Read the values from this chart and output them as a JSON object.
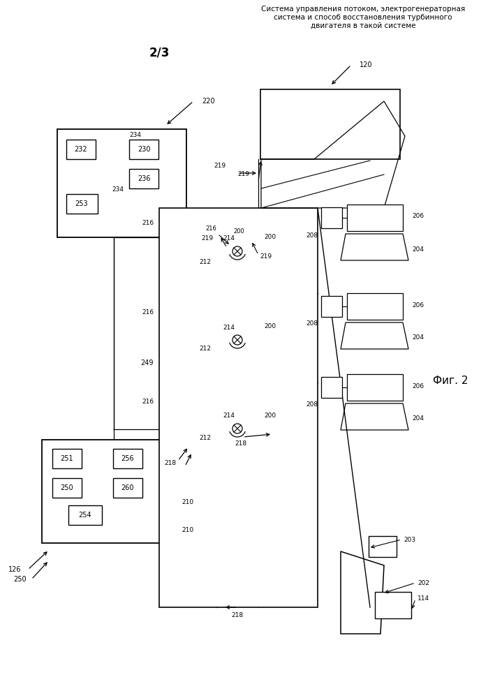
{
  "title": "Система управления потоком, электрогенераторная\nсистема и способ восстановления турбинного\nдвигателя в такой системе",
  "page": "2/3",
  "fig_label": "Фиг. 2",
  "bg_color": "#ffffff"
}
